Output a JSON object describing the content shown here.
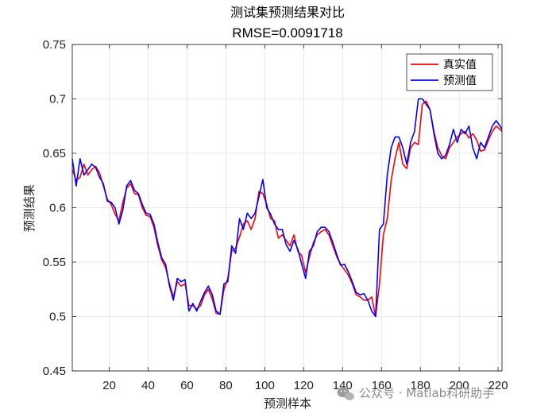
{
  "chart_data": {
    "type": "line",
    "title": "测试集预测结果对比",
    "subtitle": "RMSE=0.0091718",
    "xlabel": "预测样本",
    "ylabel": "预测结果",
    "xlim": [
      1,
      222
    ],
    "ylim": [
      0.45,
      0.75
    ],
    "xticks": [
      20,
      40,
      60,
      80,
      100,
      120,
      140,
      160,
      180,
      200,
      220
    ],
    "yticks": [
      0.45,
      0.5,
      0.55,
      0.6,
      0.65,
      0.7,
      0.75
    ],
    "ytick_labels": [
      "0.45",
      "0.5",
      "0.55",
      "0.6",
      "0.65",
      "0.7",
      "0.75"
    ],
    "grid": true,
    "legend_position": "top-right",
    "series": [
      {
        "name": "真实值",
        "color": "#ff0000",
        "x": [
          1,
          3,
          5,
          7,
          9,
          11,
          13,
          15,
          17,
          19,
          21,
          23,
          25,
          27,
          29,
          31,
          33,
          35,
          37,
          39,
          41,
          43,
          45,
          47,
          49,
          51,
          53,
          55,
          57,
          59,
          61,
          63,
          65,
          67,
          69,
          71,
          73,
          75,
          77,
          79,
          81,
          83,
          85,
          87,
          89,
          91,
          93,
          95,
          97,
          99,
          101,
          103,
          105,
          107,
          109,
          111,
          113,
          115,
          117,
          119,
          121,
          123,
          125,
          127,
          129,
          131,
          133,
          135,
          137,
          139,
          141,
          143,
          145,
          147,
          149,
          151,
          153,
          155,
          157,
          159,
          161,
          163,
          165,
          167,
          169,
          171,
          173,
          175,
          177,
          179,
          181,
          183,
          185,
          187,
          189,
          191,
          193,
          195,
          197,
          199,
          201,
          203,
          205,
          207,
          209,
          211,
          213,
          215,
          217,
          219,
          221,
          222
        ],
        "values": [
          0.635,
          0.625,
          0.628,
          0.64,
          0.63,
          0.635,
          0.638,
          0.632,
          0.62,
          0.608,
          0.603,
          0.594,
          0.588,
          0.605,
          0.618,
          0.622,
          0.613,
          0.612,
          0.6,
          0.593,
          0.592,
          0.582,
          0.565,
          0.552,
          0.545,
          0.53,
          0.518,
          0.532,
          0.528,
          0.53,
          0.51,
          0.51,
          0.507,
          0.51,
          0.52,
          0.525,
          0.516,
          0.503,
          0.502,
          0.525,
          0.535,
          0.56,
          0.563,
          0.573,
          0.585,
          0.588,
          0.58,
          0.59,
          0.615,
          0.613,
          0.603,
          0.59,
          0.588,
          0.572,
          0.575,
          0.57,
          0.565,
          0.575,
          0.56,
          0.556,
          0.54,
          0.555,
          0.568,
          0.575,
          0.578,
          0.58,
          0.575,
          0.565,
          0.555,
          0.548,
          0.543,
          0.538,
          0.53,
          0.52,
          0.518,
          0.515,
          0.515,
          0.518,
          0.5,
          0.53,
          0.575,
          0.59,
          0.625,
          0.645,
          0.66,
          0.64,
          0.636,
          0.655,
          0.66,
          0.658,
          0.695,
          0.698,
          0.69,
          0.67,
          0.655,
          0.648,
          0.645,
          0.655,
          0.66,
          0.665,
          0.668,
          0.67,
          0.664,
          0.668,
          0.662,
          0.652,
          0.653,
          0.662,
          0.67,
          0.675,
          0.672,
          0.67
        ]
      },
      {
        "name": "预测值",
        "color": "#0000ff",
        "x": [
          1,
          3,
          5,
          7,
          9,
          11,
          13,
          15,
          17,
          19,
          21,
          23,
          25,
          27,
          29,
          31,
          33,
          35,
          37,
          39,
          41,
          43,
          45,
          47,
          49,
          51,
          53,
          55,
          57,
          59,
          61,
          63,
          65,
          67,
          69,
          71,
          73,
          75,
          77,
          79,
          81,
          83,
          85,
          87,
          89,
          91,
          93,
          95,
          97,
          99,
          101,
          103,
          105,
          107,
          109,
          111,
          113,
          115,
          117,
          119,
          121,
          123,
          125,
          127,
          129,
          131,
          133,
          135,
          137,
          139,
          141,
          143,
          145,
          147,
          149,
          151,
          153,
          155,
          157,
          159,
          161,
          163,
          165,
          167,
          169,
          171,
          173,
          175,
          177,
          179,
          181,
          183,
          185,
          187,
          189,
          191,
          193,
          195,
          197,
          199,
          201,
          203,
          205,
          207,
          209,
          211,
          213,
          215,
          217,
          219,
          221,
          222
        ],
        "values": [
          0.645,
          0.62,
          0.645,
          0.63,
          0.635,
          0.64,
          0.637,
          0.628,
          0.622,
          0.606,
          0.605,
          0.6,
          0.585,
          0.598,
          0.62,
          0.625,
          0.616,
          0.613,
          0.603,
          0.595,
          0.594,
          0.585,
          0.568,
          0.554,
          0.548,
          0.528,
          0.515,
          0.535,
          0.532,
          0.534,
          0.505,
          0.512,
          0.505,
          0.514,
          0.522,
          0.528,
          0.52,
          0.505,
          0.502,
          0.53,
          0.532,
          0.565,
          0.558,
          0.59,
          0.58,
          0.595,
          0.59,
          0.595,
          0.61,
          0.626,
          0.6,
          0.594,
          0.585,
          0.58,
          0.58,
          0.566,
          0.56,
          0.57,
          0.562,
          0.548,
          0.535,
          0.56,
          0.565,
          0.578,
          0.582,
          0.582,
          0.578,
          0.568,
          0.557,
          0.547,
          0.548,
          0.541,
          0.532,
          0.522,
          0.52,
          0.521,
          0.515,
          0.505,
          0.5,
          0.58,
          0.585,
          0.63,
          0.655,
          0.665,
          0.665,
          0.655,
          0.64,
          0.66,
          0.67,
          0.7,
          0.7,
          0.695,
          0.69,
          0.668,
          0.65,
          0.645,
          0.648,
          0.658,
          0.672,
          0.66,
          0.672,
          0.668,
          0.675,
          0.655,
          0.645,
          0.66,
          0.655,
          0.665,
          0.675,
          0.68,
          0.675,
          0.672
        ]
      }
    ]
  },
  "watermark": "公众号 · Matlab科研助手",
  "wechat_icon": "wechat-icon"
}
